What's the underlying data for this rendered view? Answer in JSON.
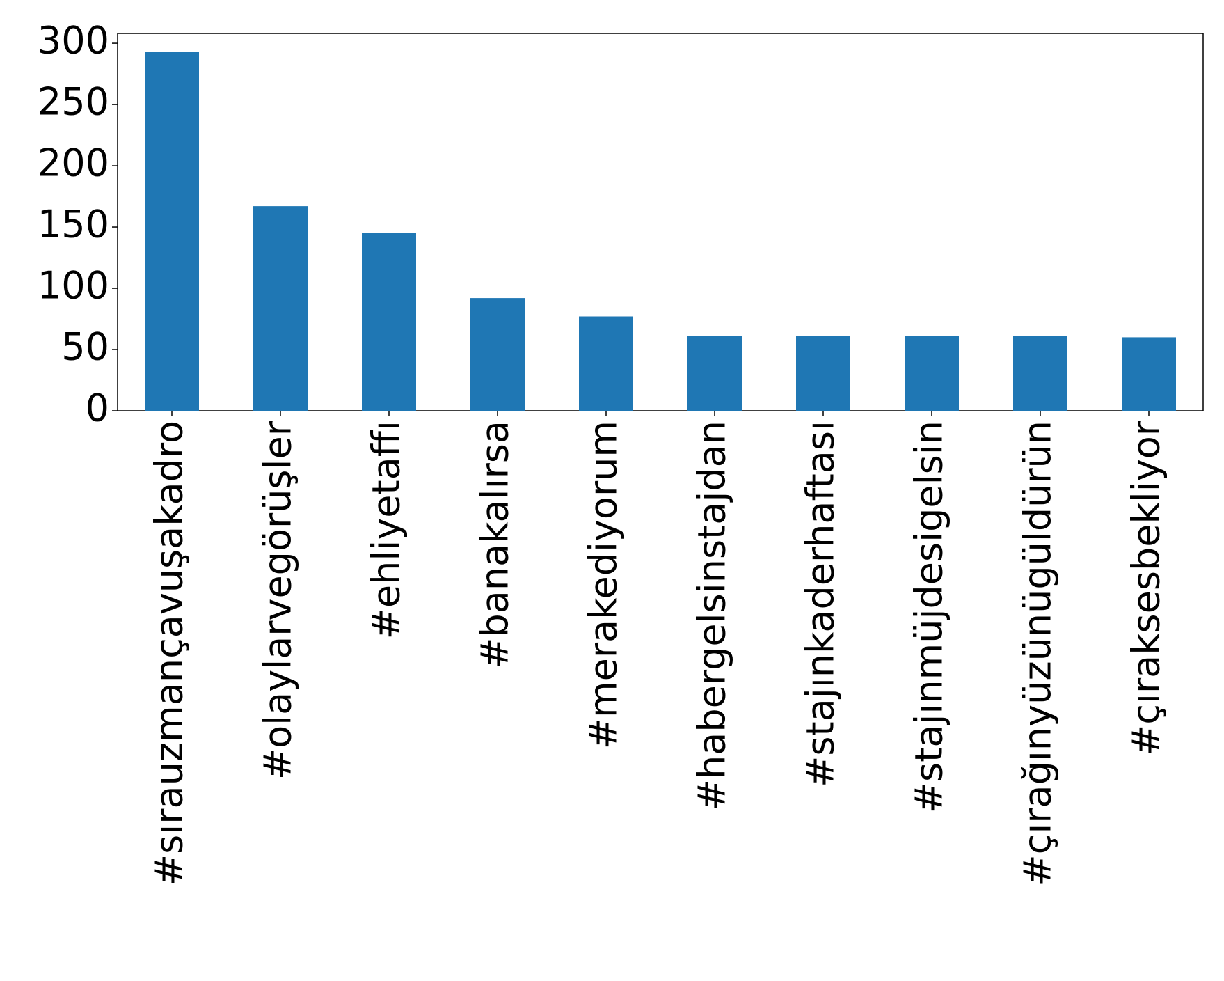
{
  "chart_data": {
    "type": "bar",
    "categories": [
      "#sırauzmançavuşakadro",
      "#olaylarvegörüşler",
      "#ehliyetaffı",
      "#banakalırsa",
      "#merakediyorum",
      "#habergelsinstajdan",
      "#stajınkaderhaftası",
      "#stajınmüjdesigelsin",
      "#çırağınyüzünügüldürün",
      "#çıraksesbekliyor"
    ],
    "values": [
      293,
      167,
      145,
      92,
      77,
      61,
      61,
      61,
      61,
      60
    ],
    "color": "#1f77b4",
    "ylim": [
      0,
      308
    ],
    "yticks": [
      0,
      50,
      100,
      150,
      200,
      250,
      300
    ],
    "grid": false
  }
}
